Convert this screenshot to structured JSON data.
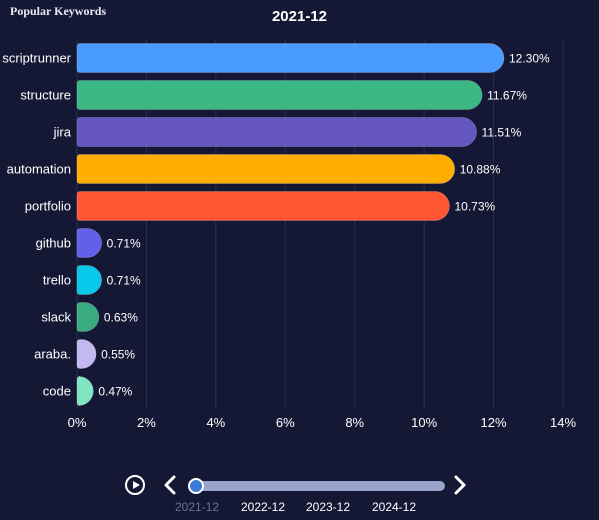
{
  "corner_title": "Popular Keywords",
  "chart_data": {
    "type": "bar",
    "orientation": "horizontal",
    "title": "2021-12",
    "categories": [
      "scriptrunner",
      "structure",
      "jira",
      "automation",
      "portfolio",
      "github",
      "trello",
      "slack",
      "araba.",
      "code"
    ],
    "values": [
      12.3,
      11.67,
      11.51,
      10.88,
      10.73,
      0.71,
      0.71,
      0.63,
      0.55,
      0.47
    ],
    "value_labels": [
      "12.30%",
      "11.67%",
      "11.51%",
      "10.88%",
      "10.73%",
      "0.71%",
      "0.71%",
      "0.63%",
      "0.55%",
      "0.47%"
    ],
    "colors": [
      "#4a9bff",
      "#3bb784",
      "#6657c0",
      "#ffae00",
      "#ff5733",
      "#6060e8",
      "#06c8e8",
      "#3aab80",
      "#c4b8f0",
      "#7fe6c0"
    ],
    "xlim": [
      0,
      14
    ],
    "x_ticks": [
      "0%",
      "2%",
      "4%",
      "6%",
      "8%",
      "10%",
      "12%",
      "14%"
    ],
    "grid": true
  },
  "timeline": {
    "labels": [
      "2021-12",
      "2022-12",
      "2023-12",
      "2024-12"
    ],
    "current": "2021-12"
  }
}
